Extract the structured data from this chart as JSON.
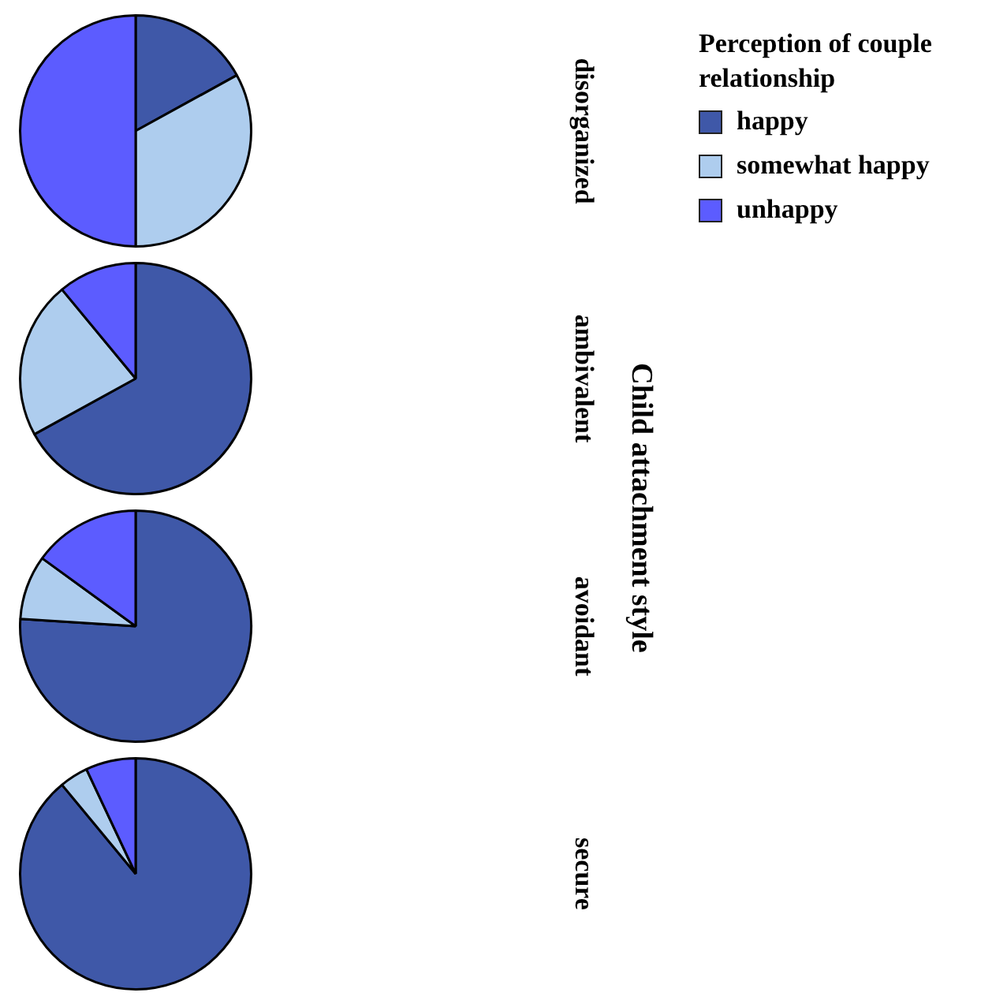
{
  "chart_data": [
    {
      "type": "pie",
      "title": "disorganized",
      "ylabel": "Child attachment style",
      "legend_title": "Perception of couple relationship",
      "legend": "right",
      "categories": [
        "happy",
        "somewhat happy",
        "unhappy"
      ],
      "values": [
        17,
        33,
        50
      ],
      "colors": [
        "#3f58a8",
        "#aecdee",
        "#5c5cff"
      ]
    },
    {
      "type": "pie",
      "title": "ambivalent",
      "categories": [
        null,
        null,
        null
      ],
      "values": [
        67,
        22,
        11
      ],
      "colors": [
        "#3f58a8",
        "#aecdee",
        "#5c5cff"
      ]
    },
    {
      "type": "pie",
      "title": "avoidant",
      "categories": [
        null,
        null,
        null
      ],
      "values": [
        76,
        9,
        15
      ],
      "colors": [
        "#3f58a8",
        "#aecdee",
        "#5c5cff"
      ]
    },
    {
      "type": "pie",
      "title": "secure",
      "categories": [
        null,
        null,
        null
      ],
      "values": [
        89,
        4,
        7
      ],
      "colors": [
        "#3f58a8",
        "#aecdee",
        "#5c5cff"
      ]
    }
  ]
}
